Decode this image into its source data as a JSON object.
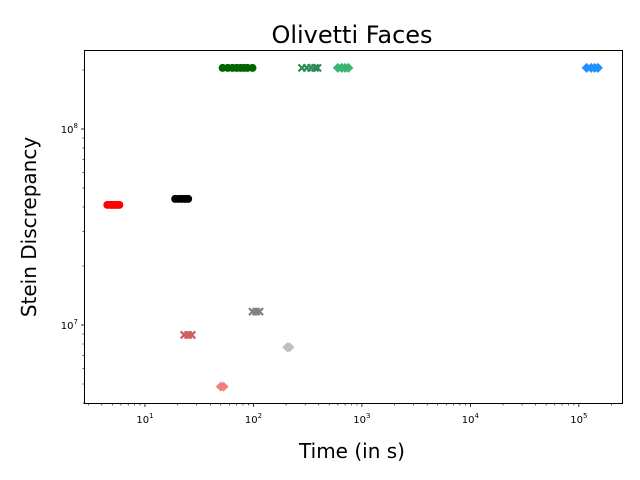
{
  "chart_data": {
    "type": "scatter",
    "title": "Olivetti Faces",
    "xlabel": "Time (in s)",
    "ylabel": "Stein Discrepancy",
    "xscale": "log",
    "yscale": "log",
    "xlim": [
      2.8,
      250000
    ],
    "ylim": [
      4000000,
      250000000
    ],
    "grid": false,
    "x_ticks": [
      {
        "value": 10,
        "base": "10",
        "exp": "1"
      },
      {
        "value": 100,
        "base": "10",
        "exp": "2"
      },
      {
        "value": 1000,
        "base": "10",
        "exp": "3"
      },
      {
        "value": 10000,
        "base": "10",
        "exp": "4"
      },
      {
        "value": 100000,
        "base": "10",
        "exp": "5"
      }
    ],
    "y_ticks": [
      {
        "value": 10000000,
        "base": "10",
        "exp": "7"
      },
      {
        "value": 100000000,
        "base": "10",
        "exp": "8"
      }
    ],
    "series": [
      {
        "color": "#ff0000",
        "marker": "circle",
        "x": [
          4.5,
          4.8,
          5.0,
          5.2,
          5.5,
          5.8
        ],
        "y": [
          41000000,
          41000000,
          41000000,
          41000000,
          41000000,
          41000000
        ]
      },
      {
        "color": "#000000",
        "marker": "circle",
        "x": [
          19,
          20.5,
          22,
          23.5,
          25
        ],
        "y": [
          44000000,
          44000000,
          44000000,
          44000000,
          44000000
        ]
      },
      {
        "color": "#006400",
        "marker": "circle",
        "x": [
          52,
          58,
          64,
          70,
          76,
          82,
          88,
          98
        ],
        "y": [
          205000000,
          205000000,
          205000000,
          205000000,
          205000000,
          205000000,
          205000000,
          205000000
        ]
      },
      {
        "color": "#2e8b57",
        "marker": "x",
        "x": [
          280,
          310,
          340,
          370,
          390
        ],
        "y": [
          205000000,
          205000000,
          205000000,
          205000000,
          205000000
        ]
      },
      {
        "color": "#3cb371",
        "marker": "diamond",
        "x": [
          600,
          650,
          700,
          750
        ],
        "y": [
          205000000,
          205000000,
          205000000,
          205000000
        ]
      },
      {
        "color": "#1e90ff",
        "marker": "diamond",
        "x": [
          118000,
          130000,
          140000,
          150000
        ],
        "y": [
          205000000,
          205000000,
          205000000,
          205000000
        ]
      },
      {
        "color": "#cd5c5c",
        "marker": "x",
        "x": [
          23,
          25,
          27
        ],
        "y": [
          8900000,
          8900000,
          8900000
        ]
      },
      {
        "color": "#808080",
        "marker": "x",
        "x": [
          98,
          106,
          114
        ],
        "y": [
          11700000,
          11700000,
          11700000
        ]
      },
      {
        "color": "#c0c0c0",
        "marker": "diamond",
        "x": [
          205,
          215
        ],
        "y": [
          7700000,
          7700000
        ]
      },
      {
        "color": "#f08080",
        "marker": "diamond",
        "x": [
          50,
          53
        ],
        "y": [
          4850000,
          4850000
        ]
      }
    ]
  }
}
